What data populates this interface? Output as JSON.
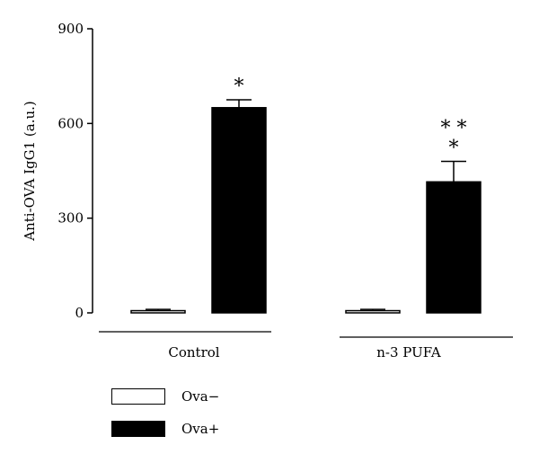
{
  "chart_data": {
    "type": "bar",
    "categories": [
      "Control",
      "n-3 PUFA"
    ],
    "series": [
      {
        "name": "Ova−",
        "color": "#ffffff",
        "values": [
          7,
          7
        ],
        "errors": [
          4,
          4
        ],
        "annotations": [
          "",
          ""
        ]
      },
      {
        "name": "Ova+",
        "color": "#000000",
        "values": [
          650,
          415
        ],
        "errors": [
          25,
          65
        ],
        "annotations": [
          "*",
          "* *\n*"
        ]
      }
    ],
    "ylabel": "Anti-OVA IgG1 (a.u.)",
    "xlabel": "",
    "ylim": [
      0,
      900
    ],
    "yticks": [
      "0",
      "300",
      "600",
      "900"
    ],
    "grid": false,
    "legend": "bottom-left"
  }
}
